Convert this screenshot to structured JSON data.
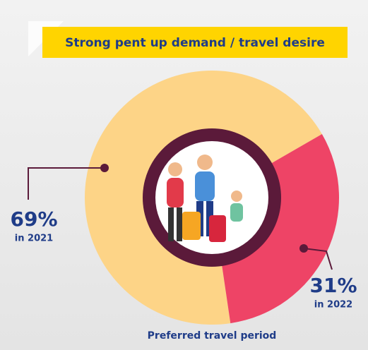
{
  "chart_data": {
    "type": "pie",
    "title": "Strong pent up demand / travel desire",
    "caption": "Preferred travel period",
    "categories": [
      "in 2021",
      "in 2022"
    ],
    "values": [
      69,
      31
    ],
    "value_labels": [
      "69%",
      "31%"
    ],
    "colors": [
      "#fdd487",
      "#ee4466"
    ]
  }
}
